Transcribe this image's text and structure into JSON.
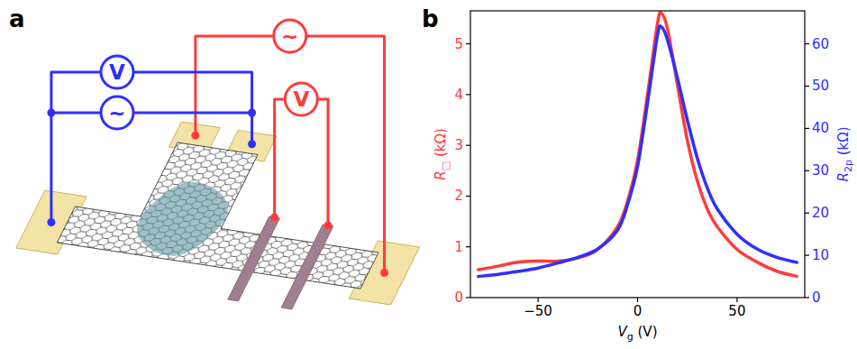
{
  "diagram": {
    "panel_label": "a",
    "sources": [
      "~",
      "~"
    ],
    "meters": [
      "V",
      "V"
    ]
  },
  "chart_data": {
    "type": "line",
    "panel_label": "b",
    "xlabel": "Vg (V)",
    "ylabel": "R□ (kΩ)",
    "y2label": "R2p (kΩ)",
    "x": [
      -80,
      -70,
      -60,
      -50,
      -40,
      -30,
      -20,
      -10,
      -5,
      0,
      5,
      10,
      12,
      15,
      20,
      25,
      30,
      35,
      40,
      50,
      60,
      70,
      80
    ],
    "series": [
      {
        "color": "#ff3b3b",
        "values": [
          0.55,
          0.62,
          0.7,
          0.72,
          0.72,
          0.78,
          0.95,
          1.4,
          1.9,
          2.7,
          4.0,
          5.4,
          5.6,
          5.3,
          4.2,
          3.1,
          2.3,
          1.75,
          1.4,
          0.95,
          0.7,
          0.52,
          0.42
        ]
      },
      {
        "color": "#2f2fff",
        "axis": "y2",
        "values": [
          5,
          5.5,
          6.2,
          7,
          8.2,
          9.5,
          11.5,
          16,
          22,
          31,
          46,
          62,
          64,
          61,
          52,
          42,
          33,
          26,
          21,
          15,
          11.5,
          9.5,
          8.3
        ]
      }
    ],
    "xlim": [
      -84,
      84
    ],
    "xticks": [
      {
        "value": -50,
        "label": "−50"
      },
      0,
      50
    ],
    "ylim": [
      0,
      5.65
    ],
    "yticks": [
      0,
      1,
      2,
      3,
      4,
      5
    ],
    "y2lim": [
      0,
      67.8
    ],
    "y2ticks": [
      0,
      10,
      20,
      30,
      40,
      50,
      60
    ],
    "grid": false,
    "line_style": "solid"
  }
}
